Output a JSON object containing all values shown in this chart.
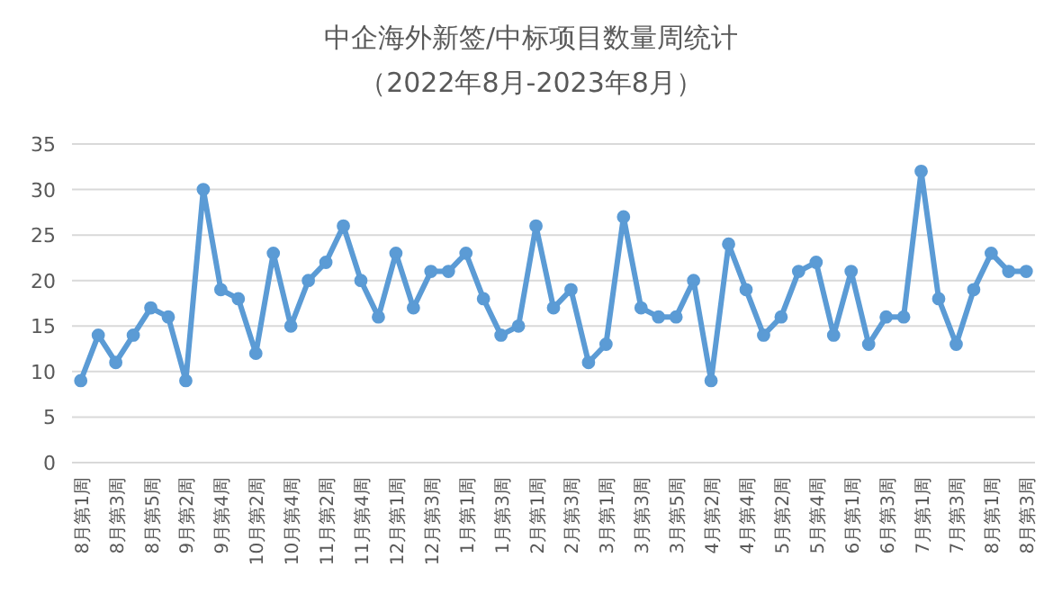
{
  "chart_data": {
    "type": "line",
    "title": "中企海外新签/中标项目数量周统计",
    "subtitle": "（2022年8月-2023年8月）",
    "categories": [
      "8月第1周",
      null,
      "8月第3周",
      null,
      "8月第5周",
      null,
      "9月第2周",
      null,
      "9月第4周",
      null,
      "10月第2周",
      null,
      "10月第4周",
      null,
      "11月第2周",
      null,
      "11月第4周",
      null,
      "12月第1周",
      null,
      "12月第3周",
      null,
      "1月第1周",
      null,
      "1月第3周",
      null,
      "2月第1周",
      null,
      "2月第3周",
      null,
      "3月第1周",
      null,
      "3月第3周",
      null,
      "3月第5周",
      null,
      "4月第2周",
      null,
      "4月第4周",
      null,
      "5月第2周",
      null,
      "5月第4周",
      null,
      "6月第1周",
      null,
      "6月第3周",
      null,
      "7月第1周",
      null,
      "7月第3周",
      null,
      "8月第1周",
      null,
      "8月第3周"
    ],
    "series": [
      {
        "color": "#5b9bd5",
        "values": [
          9,
          14,
          11,
          14,
          17,
          16,
          9,
          30,
          19,
          18,
          12,
          23,
          15,
          20,
          22,
          26,
          20,
          16,
          23,
          17,
          21,
          21,
          23,
          18,
          14,
          15,
          26,
          17,
          19,
          11,
          13,
          27,
          17,
          16,
          16,
          20,
          9,
          24,
          19,
          14,
          16,
          21,
          22,
          14,
          21,
          13,
          16,
          16,
          32,
          18,
          13,
          19,
          23,
          21,
          21
        ]
      }
    ],
    "ylim": [
      0,
      35
    ],
    "yticks": [
      0,
      5,
      10,
      15,
      20,
      25,
      30,
      35
    ],
    "grid": "y",
    "marker": "circle",
    "line_style": "solid"
  }
}
